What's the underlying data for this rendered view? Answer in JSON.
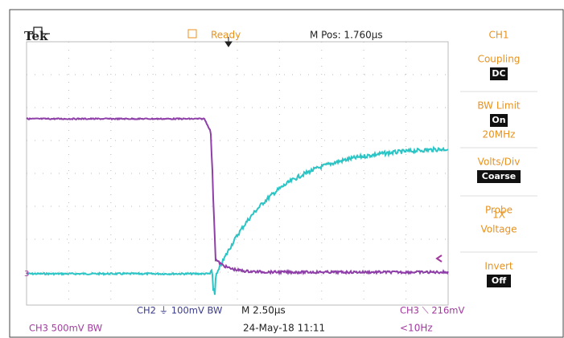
{
  "header": {
    "brand": "Tek",
    "status": "Ready",
    "m_pos": "M Pos: 1.760µs"
  },
  "menu": {
    "title": "CH1",
    "items": [
      {
        "label": "Coupling",
        "value": "DC"
      },
      {
        "label": "BW Limit",
        "value": "On",
        "extra": "20MHz"
      },
      {
        "label": "Volts/Div",
        "value": "Coarse"
      },
      {
        "label": "Probe",
        "lines": [
          "1X",
          "Voltage"
        ]
      },
      {
        "label": "Invert",
        "value": "Off"
      }
    ]
  },
  "marker": "3",
  "footer": {
    "ch2": "CH2 ⏚ 100mV BW",
    "timebase": "M 2.50µs",
    "trigger": "CH3 ⟍ 216mV",
    "ch3": "CH3  500mV BW",
    "datetime": "24-May-18 11:11",
    "freq": "<10Hz"
  }
}
